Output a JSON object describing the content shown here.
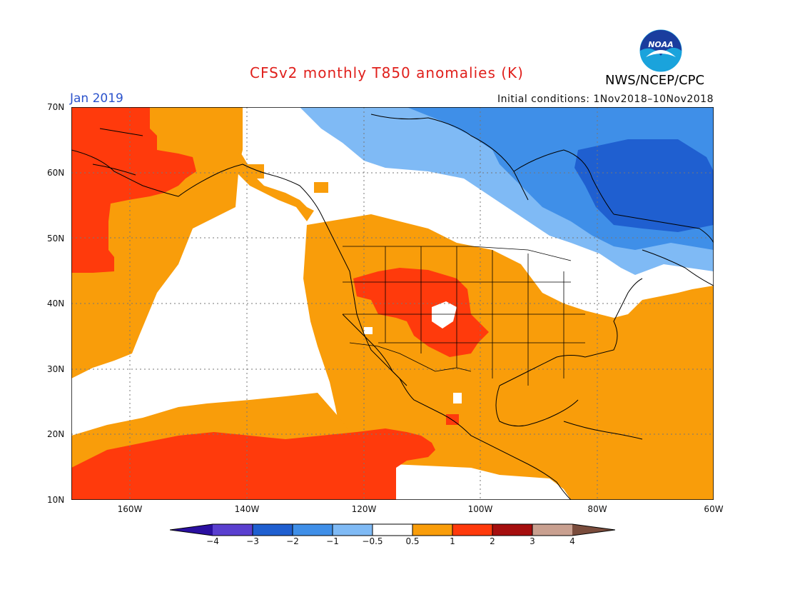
{
  "title": "CFSv2 monthly T850 anomalies (K)",
  "agency": "NWS/NCEP/CPC",
  "logo_text": "NOAA",
  "period": "Jan 2019",
  "initial_conditions": "Initial conditions: 1Nov2018–10Nov2018",
  "latitude_labels": [
    "70N",
    "60N",
    "50N",
    "40N",
    "30N",
    "20N",
    "10N"
  ],
  "longitude_labels": [
    "160W",
    "140W",
    "120W",
    "100W",
    "80W",
    "60W"
  ],
  "colorbar": {
    "labels": [
      "−4",
      "−3",
      "−2",
      "−1",
      "−0.5",
      "0.5",
      "1",
      "2",
      "3",
      "4"
    ],
    "colors": [
      "#2a0fa0",
      "#5a3fcf",
      "#1f5fd0",
      "#3f8fe8",
      "#7fbaf5",
      "#ffffff",
      "#f99d0a",
      "#ff3a0c",
      "#a50e0e",
      "#c9a090",
      "#7a4c3c"
    ]
  },
  "colors": {
    "strong_warm": "#ff3a0c",
    "warm": "#f99d0a",
    "neutral": "#ffffff",
    "cool": "#7fbaf5",
    "cooler": "#3f8fe8",
    "coldest": "#1f5fd0",
    "title": "#e0201c",
    "period": "#2a52cc"
  }
}
